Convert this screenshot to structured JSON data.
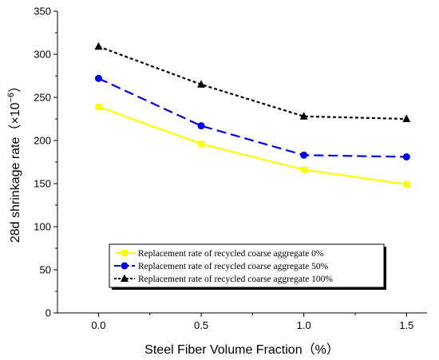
{
  "chart_data": {
    "type": "line",
    "xlabel": "Steel Fiber Volume Fraction（%）",
    "ylabel": "28d shrinkage rate（×10",
    "ylabel_exponent": "−6",
    "ylabel_suffix": "）",
    "x": [
      0.0,
      0.5,
      1.0,
      1.5
    ],
    "x_tick_labels": [
      "0.0",
      "0.5",
      "1.0",
      "1.5"
    ],
    "xlim": [
      -0.2,
      1.6
    ],
    "ylim": [
      0,
      350
    ],
    "y_ticks": [
      0,
      50,
      100,
      150,
      200,
      250,
      300,
      350
    ],
    "grid": false,
    "legend_position": "bottom-center",
    "series": [
      {
        "name": "Replacement rate of recycled coarse aggregate 0%",
        "values": [
          239,
          196,
          166,
          149
        ],
        "color": "#ffff00",
        "dash": "solid",
        "marker": "square"
      },
      {
        "name": "Replacement rate of recycled coarse aggregate 50%",
        "values": [
          272,
          217,
          183,
          181
        ],
        "color": "#0000ff",
        "dash": "long-dash",
        "marker": "circle"
      },
      {
        "name": "Replacement rate of recycled coarse aggregate 100%",
        "values": [
          309,
          265,
          228,
          225
        ],
        "color": "#000000",
        "dash": "dot",
        "marker": "triangle"
      }
    ]
  }
}
